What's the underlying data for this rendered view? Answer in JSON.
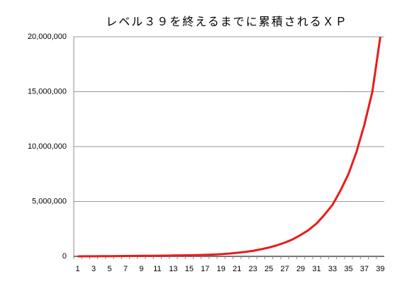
{
  "chart_data": {
    "type": "line",
    "title": "レベル３９を終えるまでに累積されるＸＰ",
    "categories": [
      "1",
      null,
      "3",
      null,
      "5",
      null,
      "7",
      null,
      "9",
      null,
      "11",
      null,
      "13",
      null,
      "15",
      null,
      "17",
      null,
      "19",
      null,
      "21",
      null,
      "23",
      null,
      "25",
      null,
      "27",
      null,
      "29",
      null,
      "31",
      null,
      "33",
      null,
      "35",
      null,
      "37",
      null,
      "39"
    ],
    "values": [
      0,
      5000,
      10000,
      15000,
      20000,
      26000,
      32000,
      38000,
      45000,
      52000,
      60000,
      68000,
      77000,
      88000,
      100000,
      115000,
      135000,
      165000,
      200000,
      250000,
      320000,
      400000,
      500000,
      640000,
      800000,
      1000000,
      1250000,
      1550000,
      1950000,
      2400000,
      3000000,
      3800000,
      4700000,
      6000000,
      7500000,
      9500000,
      12000000,
      15000000,
      20000000
    ],
    "color": "#e81c1c",
    "ylim": [
      0,
      20000000
    ],
    "yticks": [
      0,
      {
        "value": 5000000,
        "label": "5,000,000"
      },
      {
        "value": 10000000,
        "label": "10,000,000"
      },
      {
        "value": 15000000,
        "label": "15,000,000"
      },
      {
        "value": 20000000,
        "label": "20,000,000"
      }
    ],
    "grid": true
  }
}
